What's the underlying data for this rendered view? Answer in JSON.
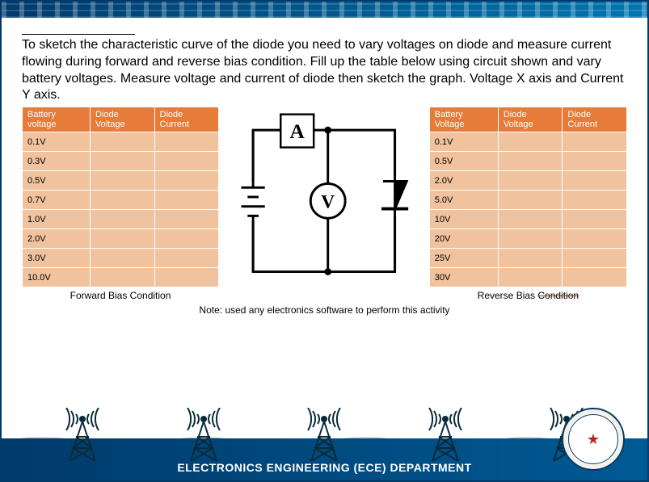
{
  "instruction": "To sketch the characteristic curve of the diode you need to vary voltages on diode and measure current flowing during forward and reverse bias condition. Fill up the table below using circuit shown and vary battery voltages. Measure voltage and current of diode then sketch the graph. Voltage X axis and Current Y axis.",
  "forward_table": {
    "headers": [
      "Battery voltage",
      "Diode Voltage",
      "Diode Current"
    ],
    "rows": [
      "0.1V",
      "0.3V",
      "0.5V",
      "0.7V",
      "1.0V",
      "2.0V",
      "3.0V",
      "10.0V"
    ],
    "caption": "Forward Bias Condition"
  },
  "reverse_table": {
    "headers": [
      "Battery Voltage",
      "Diode Voltage",
      "Diode Current"
    ],
    "rows": [
      "0.1V",
      "0.5V",
      "2.0V",
      "5.0V",
      "10V",
      "20V",
      "25V",
      "30V"
    ],
    "caption_prefix": "Reverse Bias ",
    "caption_struck": "Condition"
  },
  "note": "Note: used any electronics software to perform this activity",
  "circuit": {
    "ammeter_label": "A",
    "voltmeter_label": "V"
  },
  "footer_text": "ELECTRONICS ENGINEERING (ECE) DEPARTMENT",
  "colors": {
    "header_bg": "#e67b3a",
    "cell_bg": "#f0c29d",
    "footer_grad_a": "#003a6b",
    "footer_grad_b": "#005a94"
  }
}
